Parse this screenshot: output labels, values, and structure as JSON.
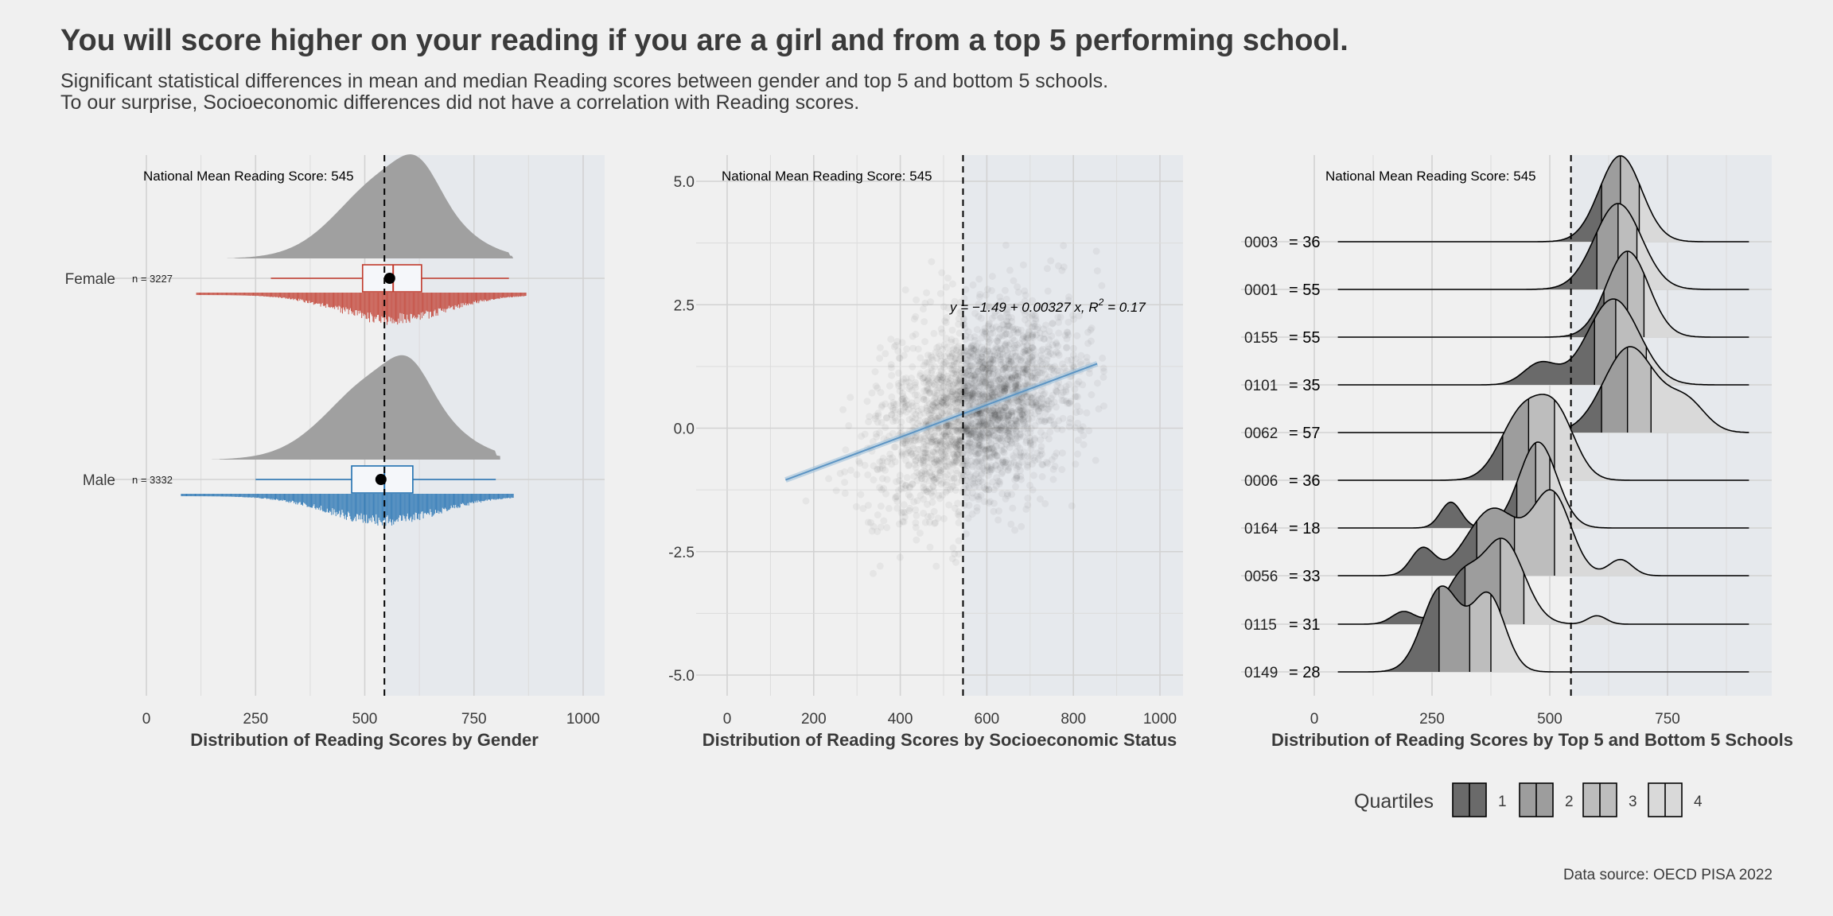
{
  "header": {
    "title": "You will score higher on your reading if you are a girl and from a top 5 performing school.",
    "subtitle_1": "Significant statistical differences in mean and median Reading scores between gender and top 5 and bottom 5 schools.",
    "subtitle_2": "To our surprise, Socioeconomic differences did not have a correlation with Reading scores."
  },
  "footer": {
    "source": "Data source: OECD PISA 2022"
  },
  "colors": {
    "panel_bg": "#e6e9ed",
    "page_bg": "#f0f0f0",
    "female": "#c0392b",
    "male": "#1f6fb0",
    "density_grey": "#a0a0a0",
    "regression": "#5d95c4"
  },
  "chart_data": [
    {
      "type": "raincloud",
      "xlabel": "Distribution of Reading Scores by Gender",
      "xlim": [
        0,
        1050
      ],
      "xticks": [
        0,
        250,
        500,
        750,
        1000
      ],
      "reference_line": {
        "value": 545,
        "label": "National Mean Reading Score: 545"
      },
      "groups": [
        {
          "name": "Female",
          "n_label": "n = 3227",
          "n": 3227,
          "min": 285,
          "q1": 495,
          "median": 565,
          "q3": 630,
          "max": 830,
          "mean": 557,
          "color": "#c0392b"
        },
        {
          "name": "Male",
          "n_label": "n = 3332",
          "n": 3332,
          "min": 250,
          "q1": 470,
          "median": 545,
          "q3": 610,
          "max": 800,
          "mean": 537,
          "color": "#1f6fb0"
        }
      ]
    },
    {
      "type": "scatter",
      "xlabel": "Distribution of Reading Scores by Socioeconomic Status",
      "xlim": [
        0,
        1050
      ],
      "ylim": [
        -5.5,
        5.5
      ],
      "xticks": [
        0,
        200,
        400,
        600,
        800,
        1000
      ],
      "yticks": [
        5.0,
        2.5,
        0.0,
        -2.5,
        -5.0
      ],
      "ytick_labels": [
        "5.0",
        "2.5",
        "0.0",
        "-2.5",
        "-5.0"
      ],
      "reference_line": {
        "value": 545,
        "label": "National Mean Reading Score: 545"
      },
      "regression": {
        "intercept": -1.49,
        "slope": 0.00327,
        "r2": 0.17,
        "x_range": [
          135,
          855
        ],
        "equation_prefix": "y = −1.49 + 0.00327 x, R",
        "equation_sup": "2",
        "equation_suffix": " = 0.17"
      },
      "cloud": {
        "center_x": 580,
        "center_y": 0.4,
        "sd_x": 110,
        "sd_y": 0.95
      }
    },
    {
      "type": "ridgeline",
      "xlabel": "Distribution of Reading Scores by Top 5 and Bottom 5 Schools",
      "xlim": [
        0,
        975
      ],
      "xticks": [
        0,
        250,
        500,
        750
      ],
      "reference_line": {
        "value": 545,
        "label": "National Mean Reading Score: 545"
      },
      "legend": {
        "title": "Quartiles",
        "items": [
          "1",
          "2",
          "3",
          "4"
        ],
        "fills": [
          "#6a6a6a",
          "#9d9d9d",
          "#bdbdbd",
          "#d9d9d9"
        ]
      },
      "schools": [
        {
          "id": "0003",
          "n_label": "= 36",
          "modes": [
            [
              650,
              45,
              1.0
            ]
          ],
          "quartiles": [
            610,
            650,
            690
          ]
        },
        {
          "id": "0001",
          "n_label": "= 55",
          "modes": [
            [
              645,
              50,
              1.0
            ]
          ],
          "quartiles": [
            600,
            645,
            685
          ]
        },
        {
          "id": "0155",
          "n_label": "= 55",
          "modes": [
            [
              665,
              45,
              1.0
            ]
          ],
          "quartiles": [
            615,
            665,
            700
          ]
        },
        {
          "id": "0101",
          "n_label": "= 35",
          "modes": [
            [
              635,
              55,
              1.0
            ],
            [
              480,
              35,
              0.25
            ]
          ],
          "quartiles": [
            595,
            640,
            705
          ]
        },
        {
          "id": "0062",
          "n_label": "= 57",
          "modes": [
            [
              670,
              55,
              1.0
            ],
            [
              790,
              40,
              0.35
            ]
          ],
          "quartiles": [
            610,
            665,
            715
          ]
        },
        {
          "id": "0006",
          "n_label": "= 36",
          "modes": [
            [
              440,
              45,
              0.9
            ],
            [
              515,
              40,
              0.85
            ]
          ],
          "quartiles": [
            400,
            455,
            510
          ]
        },
        {
          "id": "0164",
          "n_label": "= 18",
          "modes": [
            [
              475,
              40,
              1.0
            ],
            [
              290,
              22,
              0.3
            ]
          ],
          "quartiles": [
            430,
            470,
            500
          ]
        },
        {
          "id": "0056",
          "n_label": "= 33",
          "modes": [
            [
              505,
              40,
              0.9
            ],
            [
              380,
              55,
              0.75
            ],
            [
              230,
              25,
              0.3
            ],
            [
              650,
              25,
              0.18
            ]
          ],
          "quartiles": [
            345,
            425,
            510
          ]
        },
        {
          "id": "0115",
          "n_label": "= 31",
          "modes": [
            [
              400,
              45,
              1.0
            ],
            [
              310,
              35,
              0.5
            ],
            [
              190,
              25,
              0.15
            ],
            [
              600,
              20,
              0.1
            ]
          ],
          "quartiles": [
            320,
            395,
            445
          ]
        },
        {
          "id": "0149",
          "n_label": "= 28",
          "modes": [
            [
              270,
              40,
              0.95
            ],
            [
              370,
              35,
              0.85
            ]
          ],
          "quartiles": [
            265,
            330,
            375
          ]
        }
      ]
    }
  ]
}
